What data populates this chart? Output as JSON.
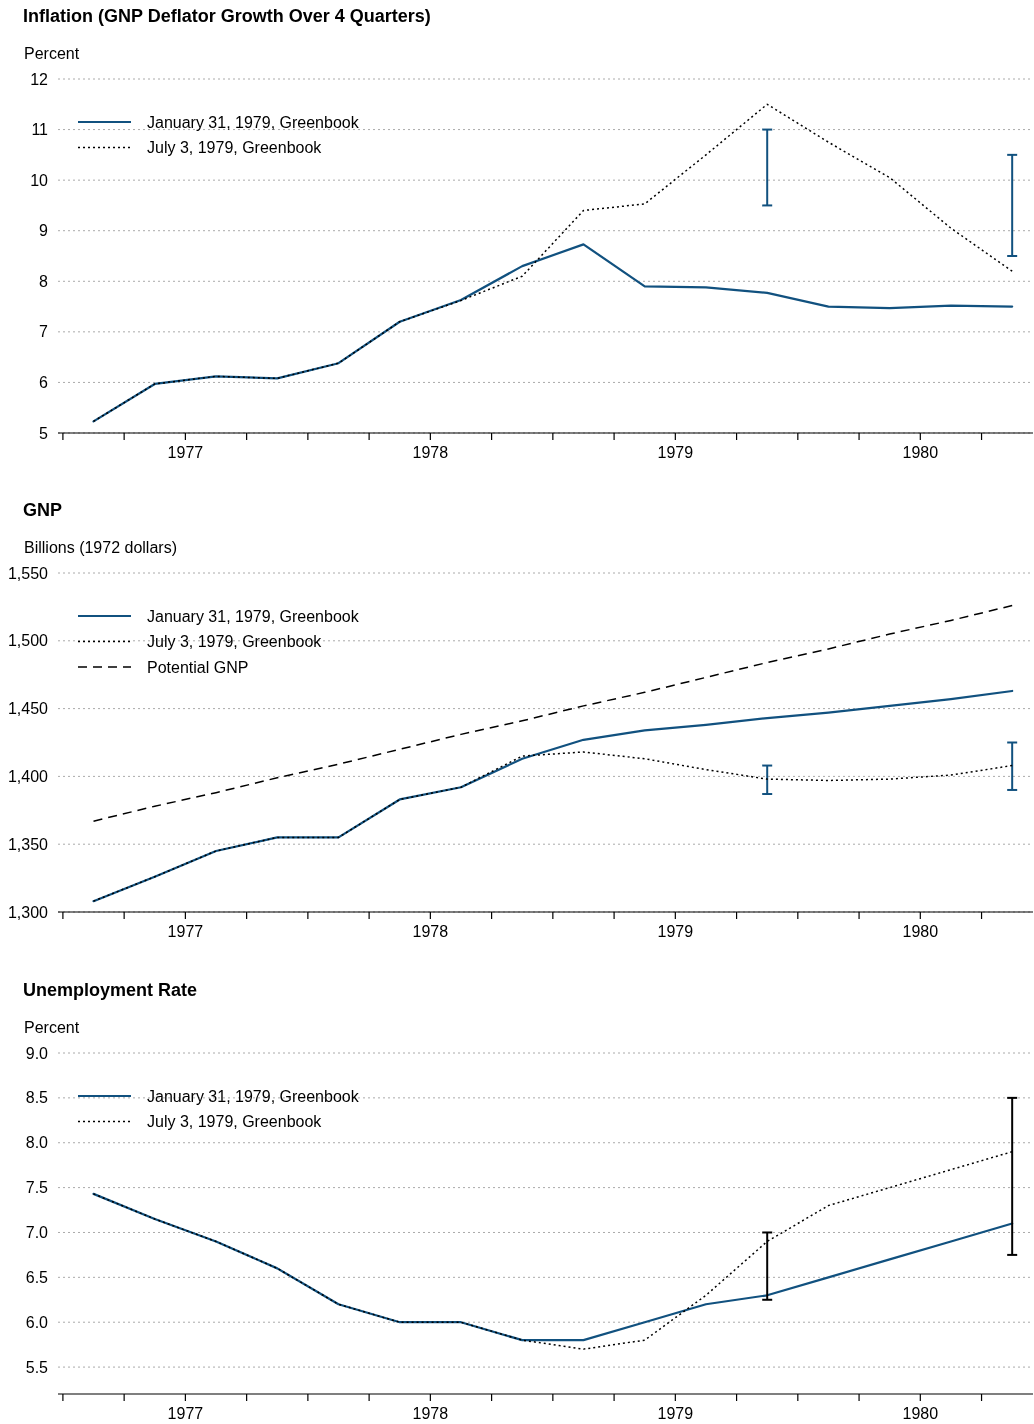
{
  "chart_data": [
    {
      "type": "line",
      "title": "Inflation (GNP Deflator Growth Over 4 Quarters)",
      "ylabel": "Percent",
      "x": [
        1977.125,
        1977.375,
        1977.625,
        1977.875,
        1978.125,
        1978.375,
        1978.625,
        1978.875,
        1979.125,
        1979.375,
        1979.625,
        1979.875,
        1980.125,
        1980.375,
        1980.625,
        1980.875
      ],
      "series": [
        {
          "name": "January 31, 1979, Greenbook",
          "color": "#11517f",
          "line_style": "solid",
          "values": [
            5.23,
            5.97,
            6.12,
            6.08,
            6.38,
            7.2,
            7.63,
            8.3,
            8.73,
            7.9,
            7.88,
            7.77,
            7.5,
            7.47,
            7.52,
            7.5
          ],
          "errors": [
            null,
            null,
            null,
            null,
            null,
            null,
            null,
            null,
            null,
            null,
            null,
            [
              9.5,
              11
            ],
            null,
            null,
            null,
            [
              8.5,
              10.5
            ]
          ]
        },
        {
          "name": "July 3, 1979, Greenbook",
          "color": "#000000",
          "line_style": "dotted",
          "values": [
            5.23,
            5.97,
            6.12,
            6.08,
            6.38,
            7.2,
            7.62,
            8.1,
            9.4,
            9.53,
            10.5,
            11.5,
            10.75,
            10.05,
            9.05,
            8.2
          ]
        }
      ],
      "xlim": [
        1976.98,
        1980.96
      ],
      "xticks": [
        {
          "value": 1977,
          "label": null
        },
        {
          "value": 1977.25,
          "label": null
        },
        {
          "value": 1977.5,
          "label": "1977"
        },
        {
          "value": 1977.75,
          "label": null
        },
        {
          "value": 1978,
          "label": null
        },
        {
          "value": 1978.25,
          "label": null
        },
        {
          "value": 1978.5,
          "label": "1978"
        },
        {
          "value": 1978.75,
          "label": null
        },
        {
          "value": 1979,
          "label": null
        },
        {
          "value": 1979.25,
          "label": null
        },
        {
          "value": 1979.5,
          "label": "1979"
        },
        {
          "value": 1979.75,
          "label": null
        },
        {
          "value": 1980,
          "label": null
        },
        {
          "value": 1980.25,
          "label": null
        },
        {
          "value": 1980.5,
          "label": "1980"
        },
        {
          "value": 1980.75,
          "label": null
        }
      ],
      "ylim": [
        5,
        12
      ],
      "yticks": [
        5,
        6,
        7,
        8,
        9,
        10,
        11,
        12
      ],
      "grid": "y",
      "legend": "top left",
      "marker": "none"
    },
    {
      "type": "line",
      "title": "GNP",
      "ylabel": "Billions (1972 dollars)",
      "x": [
        1977.125,
        1977.375,
        1977.625,
        1977.875,
        1978.125,
        1978.375,
        1978.625,
        1978.875,
        1979.125,
        1979.375,
        1979.625,
        1979.875,
        1980.125,
        1980.375,
        1980.625,
        1980.875
      ],
      "series": [
        {
          "name": "January 31, 1979, Greenbook",
          "color": "#11517f",
          "line_style": "solid",
          "values": [
            1308,
            1326,
            1345,
            1355,
            1355,
            1383,
            1392,
            1413,
            1427,
            1434,
            1438,
            1443,
            1447,
            1452,
            1457,
            1463
          ],
          "errors": [
            null,
            null,
            null,
            null,
            null,
            null,
            null,
            null,
            null,
            null,
            null,
            [
              1387,
              1408
            ],
            null,
            null,
            null,
            [
              1390,
              1425
            ]
          ]
        },
        {
          "name": "July 3, 1979, Greenbook",
          "color": "#000000",
          "line_style": "dotted",
          "values": [
            1308,
            1326,
            1345,
            1355,
            1355,
            1383,
            1392,
            1415,
            1418,
            1413,
            1405,
            1398,
            1397,
            1398,
            1401,
            1408
          ]
        },
        {
          "name": "Potential GNP",
          "color": "#000000",
          "line_style": "dashed",
          "values": [
            1367,
            1378,
            1388,
            1399,
            1409,
            1420,
            1431,
            1441,
            1452,
            1462,
            1473,
            1484,
            1494,
            1505,
            1515,
            1526
          ]
        }
      ],
      "xlim": [
        1976.98,
        1980.96
      ],
      "xticks": [
        {
          "value": 1977,
          "label": null
        },
        {
          "value": 1977.25,
          "label": null
        },
        {
          "value": 1977.5,
          "label": "1977"
        },
        {
          "value": 1977.75,
          "label": null
        },
        {
          "value": 1978,
          "label": null
        },
        {
          "value": 1978.25,
          "label": null
        },
        {
          "value": 1978.5,
          "label": "1978"
        },
        {
          "value": 1978.75,
          "label": null
        },
        {
          "value": 1979,
          "label": null
        },
        {
          "value": 1979.25,
          "label": null
        },
        {
          "value": 1979.5,
          "label": "1979"
        },
        {
          "value": 1979.75,
          "label": null
        },
        {
          "value": 1980,
          "label": null
        },
        {
          "value": 1980.25,
          "label": null
        },
        {
          "value": 1980.5,
          "label": "1980"
        },
        {
          "value": 1980.75,
          "label": null
        }
      ],
      "ylim": [
        1300,
        1550
      ],
      "yticks": [
        {
          "value": 1300,
          "label": "1,300"
        },
        {
          "value": 1350,
          "label": "1,350"
        },
        {
          "value": 1400,
          "label": "1,400"
        },
        {
          "value": 1450,
          "label": "1,450"
        },
        {
          "value": 1500,
          "label": "1,500"
        },
        {
          "value": 1550,
          "label": "1,550"
        }
      ],
      "grid": "y",
      "legend": "top left",
      "marker": "none"
    },
    {
      "type": "line",
      "title": "Unemployment Rate",
      "ylabel": "Percent",
      "x": [
        1977.125,
        1977.375,
        1977.625,
        1977.875,
        1978.125,
        1978.375,
        1978.625,
        1978.875,
        1979.125,
        1979.375,
        1979.625,
        1979.875,
        1980.125,
        1980.375,
        1980.625,
        1980.875
      ],
      "series": [
        {
          "name": "January 31, 1979, Greenbook",
          "color": "#11517f",
          "line_style": "solid",
          "values": [
            7.43,
            7.15,
            6.9,
            6.6,
            6.2,
            6.0,
            6.0,
            5.8,
            5.8,
            6.0,
            6.2,
            6.3,
            6.5,
            6.7,
            6.9,
            7.1
          ]
        },
        {
          "name": "July 3, 1979, Greenbook",
          "color": "#000000",
          "line_style": "dotted",
          "values": [
            7.43,
            7.15,
            6.9,
            6.6,
            6.2,
            6.0,
            6.0,
            5.8,
            5.7,
            5.8,
            6.3,
            6.9,
            7.3,
            7.5,
            7.7,
            7.9
          ],
          "errors": [
            null,
            null,
            null,
            null,
            null,
            null,
            null,
            null,
            null,
            null,
            null,
            [
              6.25,
              7.0
            ],
            null,
            null,
            null,
            [
              6.75,
              8.5
            ]
          ]
        }
      ],
      "xlim": [
        1976.98,
        1980.96
      ],
      "xticks": [
        {
          "value": 1977,
          "label": null
        },
        {
          "value": 1977.25,
          "label": null
        },
        {
          "value": 1977.5,
          "label": "1977"
        },
        {
          "value": 1977.75,
          "label": null
        },
        {
          "value": 1978,
          "label": null
        },
        {
          "value": 1978.25,
          "label": null
        },
        {
          "value": 1978.5,
          "label": "1978"
        },
        {
          "value": 1978.75,
          "label": null
        },
        {
          "value": 1979,
          "label": null
        },
        {
          "value": 1979.25,
          "label": null
        },
        {
          "value": 1979.5,
          "label": "1979"
        },
        {
          "value": 1979.75,
          "label": null
        },
        {
          "value": 1980,
          "label": null
        },
        {
          "value": 1980.25,
          "label": null
        },
        {
          "value": 1980.5,
          "label": "1980"
        },
        {
          "value": 1980.75,
          "label": null
        }
      ],
      "ylim": [
        5.2,
        9.0
      ],
      "yticks": [
        {
          "value": 5.5,
          "label": "5.5"
        },
        {
          "value": 6,
          "label": "6.0"
        },
        {
          "value": 6.5,
          "label": "6.5"
        },
        {
          "value": 7,
          "label": "7.0"
        },
        {
          "value": 7.5,
          "label": "7.5"
        },
        {
          "value": 8,
          "label": "8.0"
        },
        {
          "value": 8.5,
          "label": "8.5"
        },
        {
          "value": 9,
          "label": "9.0"
        }
      ],
      "grid": "y",
      "legend": "top left",
      "marker": "none"
    }
  ]
}
